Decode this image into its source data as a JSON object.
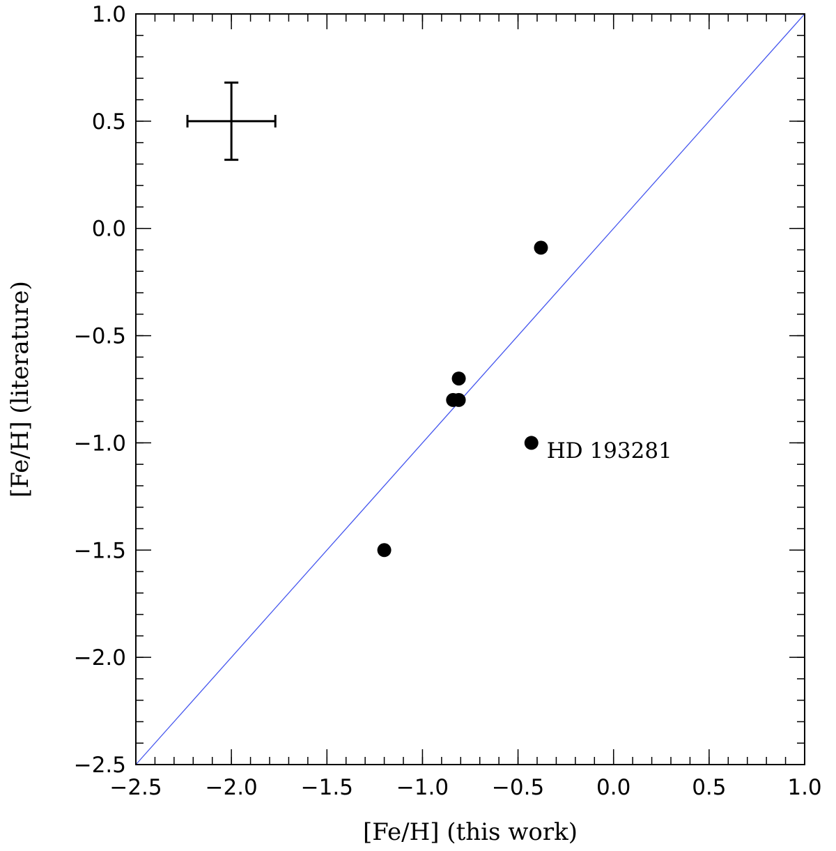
{
  "chart_data": {
    "type": "scatter",
    "xlabel": "[Fe/H] (this work)",
    "ylabel": "[Fe/H] (literature)",
    "xlim": [
      -2.5,
      1.0
    ],
    "ylim": [
      -2.5,
      1.0
    ],
    "x_ticks": [
      -2.5,
      -2.0,
      -1.5,
      -1.0,
      -0.5,
      0.0,
      0.5,
      1.0
    ],
    "x_tick_labels": [
      "−2.5",
      "−2.0",
      "−1.5",
      "−1.0",
      "−0.5",
      "0.0",
      "0.5",
      "1.0"
    ],
    "y_ticks": [
      -2.5,
      -2.0,
      -1.5,
      -1.0,
      -0.5,
      0.0,
      0.5,
      1.0
    ],
    "y_tick_labels": [
      "−2.5",
      "−2.0",
      "−1.5",
      "−1.0",
      "−0.5",
      "0.0",
      "0.5",
      "1.0"
    ],
    "minor_tick_step": 0.1,
    "grid": false,
    "points": [
      {
        "x": -1.2,
        "y": -1.5
      },
      {
        "x": -0.84,
        "y": -0.8
      },
      {
        "x": -0.81,
        "y": -0.8
      },
      {
        "x": -0.81,
        "y": -0.7
      },
      {
        "x": -0.43,
        "y": -1.0
      },
      {
        "x": -0.38,
        "y": -0.09
      }
    ],
    "point_color": "#000000",
    "reference_line": {
      "x": [
        -2.5,
        1.0
      ],
      "y": [
        -2.5,
        1.0
      ],
      "color": "#4455ee"
    },
    "error_bar": {
      "x": -2.0,
      "y": 0.5,
      "xerr": 0.23,
      "yerr": 0.18
    },
    "annotations": [
      {
        "text": "HD 193281",
        "x": -0.35,
        "y": -1.07
      }
    ]
  }
}
